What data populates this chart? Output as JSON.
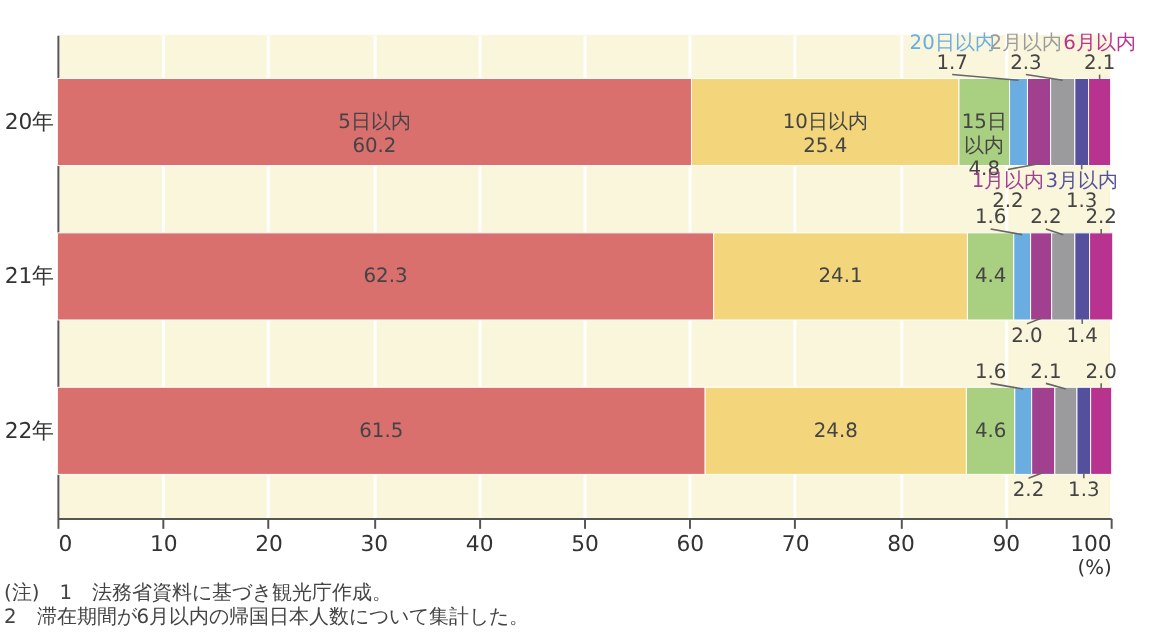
{
  "chart_data": {
    "type": "bar",
    "orientation": "horizontal",
    "stacked": true,
    "categories": [
      "20年",
      "21年",
      "22年"
    ],
    "series": [
      {
        "name": "5日以内",
        "color": "#d9706e",
        "values": [
          60.2,
          62.3,
          61.5
        ],
        "value_labels": [
          "60.2",
          "62.3",
          "61.5"
        ]
      },
      {
        "name": "10日以内",
        "color": "#f3d67c",
        "values": [
          25.4,
          24.1,
          24.8
        ],
        "value_labels": [
          "25.4",
          "24.1",
          "24.8"
        ]
      },
      {
        "name": "15日以内",
        "color": "#a9cf80",
        "values": [
          4.8,
          4.4,
          4.6
        ],
        "value_labels": [
          "4.8",
          "4.4",
          "4.6"
        ]
      },
      {
        "name": "20日以内",
        "color": "#6aade0",
        "values": [
          1.7,
          1.6,
          1.6
        ],
        "value_labels": [
          "1.7",
          "1.6",
          "1.6"
        ]
      },
      {
        "name": "1月以内",
        "color": "#a0408f",
        "values": [
          2.2,
          2.0,
          2.2
        ],
        "value_labels": [
          "2.2",
          "2.0",
          "2.2"
        ]
      },
      {
        "name": "2月以内",
        "color": "#9b9a9c",
        "values": [
          2.3,
          2.2,
          2.1
        ],
        "value_labels": [
          "2.3",
          "2.2",
          "2.1"
        ]
      },
      {
        "name": "3月以内",
        "color": "#54509e",
        "values": [
          1.3,
          1.4,
          1.3
        ],
        "value_labels": [
          "1.3",
          "1.4",
          "1.3"
        ]
      },
      {
        "name": "6月以内",
        "color": "#b8338f",
        "values": [
          2.1,
          2.2,
          2.0
        ],
        "value_labels": [
          "2.1",
          "2.2",
          "2.0"
        ]
      }
    ],
    "xlim": [
      0,
      100
    ],
    "xticks": [
      0,
      10,
      20,
      30,
      40,
      50,
      60,
      70,
      80,
      90,
      100
    ],
    "xlabel": "(%)",
    "grid": "x",
    "annotations": [
      "(注)　1　法務省資料に基づき観光庁作成。",
      "　　　2　滞在期間が6月以内の帰国日本人数について集計した。"
    ]
  }
}
